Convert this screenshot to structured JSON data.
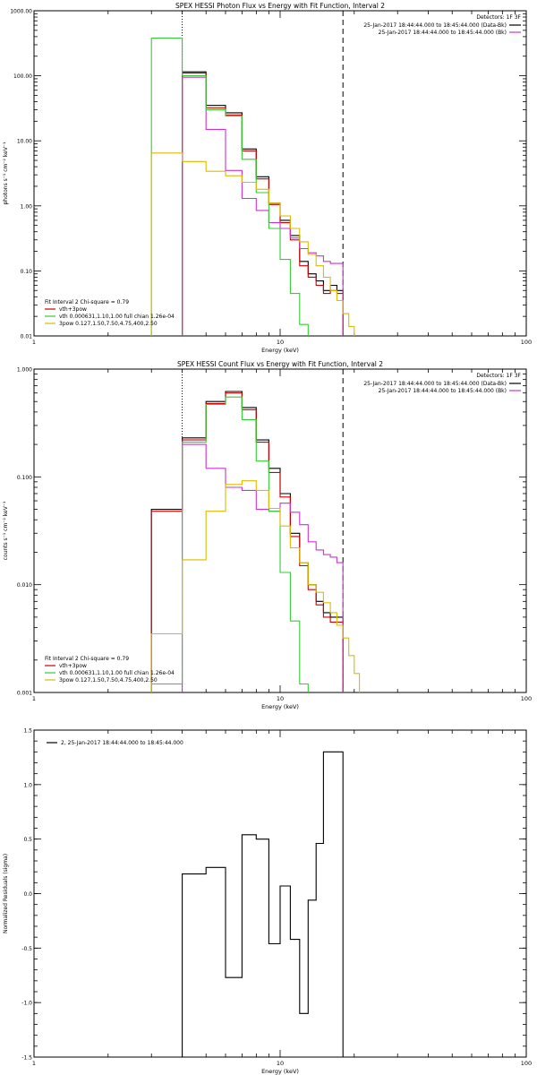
{
  "chart_data": [
    {
      "type": "line",
      "title": "SPEX HESSI Photon Flux vs Energy with Fit Function, Interval 2",
      "xlabel": "Energy (keV)",
      "ylabel": "photons s⁻¹ cm⁻² keV⁻¹",
      "xscale": "log",
      "yscale": "log",
      "xlim": [
        1,
        100
      ],
      "ylim": [
        0.01,
        1000
      ],
      "x_ticks": [
        "1",
        "10",
        "100"
      ],
      "y_ticks": [
        "0.01",
        "0.10",
        "1.00",
        "10.00",
        "100.00",
        "1000.00"
      ],
      "legend_top": {
        "header": "Detectors: 1F 3F",
        "entries": [
          {
            "label": "25-Jan-2017 18:44:44.000 to 18:45:44.000 (Data-Bk)",
            "color": "#000000"
          },
          {
            "label": "25-Jan-2017 18:44:44.000 to 18:45:44.000 (Bk)",
            "color": "#cc33cc"
          }
        ]
      },
      "legend_bottom": {
        "header": "Fit Interval 2   Chi-square = 0.79",
        "entries": [
          {
            "label": "vth+3pow",
            "color": "#cc0000"
          },
          {
            "label": "vth 0.000631,1.10,1.00  full chian 1.26e-04",
            "color": "#33cc33"
          },
          {
            "label": "3pow 0.127,1.50,7.50,4.75,400,2.50",
            "color": "#ddbb00"
          }
        ]
      },
      "vlines": [
        {
          "x": 4.0,
          "style": "dotted"
        },
        {
          "x": 18.0,
          "style": "dashed"
        }
      ],
      "series": [
        {
          "name": "Data-Bk",
          "color": "#000000",
          "edges": [
            4,
            5,
            6,
            7,
            8,
            9,
            10,
            11,
            12,
            13,
            14,
            15,
            16,
            17,
            18
          ],
          "values": [
            115,
            35,
            27,
            7.5,
            2.8,
            1.1,
            0.6,
            0.35,
            0.14,
            0.09,
            0.07,
            0.05,
            0.06,
            0.05
          ]
        },
        {
          "name": "vth+3pow",
          "color": "#cc0000",
          "edges": [
            4,
            5,
            6,
            7,
            8,
            9,
            10,
            11,
            12,
            13,
            14,
            15,
            16,
            17,
            18
          ],
          "values": [
            110,
            32,
            25,
            7,
            2.6,
            1.05,
            0.55,
            0.3,
            0.12,
            0.08,
            0.06,
            0.045,
            0.05,
            0.045
          ]
        },
        {
          "name": "Bk",
          "color": "#cc33cc",
          "edges": [
            4,
            5,
            6,
            7,
            8,
            9,
            10,
            11,
            12,
            13,
            14,
            15,
            16,
            17,
            18
          ],
          "values": [
            95,
            15,
            3.5,
            1.3,
            0.85,
            0.55,
            0.45,
            0.32,
            0.22,
            0.19,
            0.17,
            0.14,
            0.13,
            0.13
          ]
        },
        {
          "name": "vth",
          "color": "#33cc33",
          "edges": [
            3,
            4,
            5,
            6,
            7,
            8,
            9,
            10,
            11,
            12,
            13
          ],
          "values": [
            380,
            100,
            30,
            24,
            5.2,
            1.6,
            0.45,
            0.15,
            0.045,
            0.015
          ]
        },
        {
          "name": "3pow",
          "color": "#ddbb00",
          "edges": [
            3,
            4,
            5,
            6,
            7,
            8,
            9,
            10,
            11,
            12,
            13,
            14,
            15,
            16,
            17,
            18,
            19,
            20
          ],
          "values": [
            6.5,
            4.8,
            3.4,
            2.9,
            2.3,
            1.8,
            1.1,
            0.7,
            0.45,
            0.28,
            0.18,
            0.12,
            0.08,
            0.05,
            0.035,
            0.022,
            0.014
          ]
        }
      ]
    },
    {
      "type": "line",
      "title": "SPEX HESSI Count Flux vs Energy with Fit Function, Interval 2",
      "xlabel": "Energy (keV)",
      "ylabel": "counts s⁻¹ cm⁻² keV⁻¹",
      "xscale": "log",
      "yscale": "log",
      "xlim": [
        1,
        100
      ],
      "ylim": [
        0.001,
        1
      ],
      "x_ticks": [
        "1",
        "10",
        "100"
      ],
      "y_ticks": [
        "0.001",
        "0.010",
        "0.100",
        "1.000"
      ],
      "legend_top": {
        "header": "Detectors: 1F 3F",
        "entries": [
          {
            "label": "25-Jan-2017 18:44:44.000 to 18:45:44.000 (Data-Bk)",
            "color": "#000000"
          },
          {
            "label": "25-Jan-2017 18:44:44.000 to 18:45:44.000 (Bk)",
            "color": "#cc33cc"
          }
        ]
      },
      "legend_bottom": {
        "header": "Fit Interval 2   Chi-square = 0.79",
        "entries": [
          {
            "label": "vth+3pow",
            "color": "#cc0000"
          },
          {
            "label": "vth 0.000631,1.10,1.00  full chian 1.26e-04",
            "color": "#33cc33"
          },
          {
            "label": "3pow 0.127,1.50,7.50,4.75,400,2.50",
            "color": "#ddbb00"
          }
        ]
      },
      "vlines": [
        {
          "x": 4.0,
          "style": "dotted"
        },
        {
          "x": 18.0,
          "style": "dashed"
        }
      ],
      "series": [
        {
          "name": "Data-Bk",
          "color": "#000000",
          "edges": [
            3,
            4,
            5,
            6,
            7,
            8,
            9,
            10,
            11,
            12,
            13,
            14,
            15,
            16,
            17,
            18
          ],
          "values": [
            0.05,
            0.23,
            0.5,
            0.62,
            0.44,
            0.22,
            0.12,
            0.07,
            0.03,
            0.016,
            0.01,
            0.007,
            0.0055,
            0.005,
            0.005
          ]
        },
        {
          "name": "vth+3pow",
          "color": "#cc0000",
          "edges": [
            3,
            4,
            5,
            6,
            7,
            8,
            9,
            10,
            11,
            12,
            13,
            14,
            15,
            16,
            17,
            18
          ],
          "values": [
            0.048,
            0.22,
            0.48,
            0.6,
            0.42,
            0.21,
            0.11,
            0.065,
            0.028,
            0.015,
            0.009,
            0.0065,
            0.005,
            0.0045,
            0.0045
          ]
        },
        {
          "name": "Bk",
          "color": "#cc33cc",
          "edges": [
            4,
            5,
            6,
            7,
            8,
            9,
            10,
            11,
            12,
            13,
            14,
            15,
            16,
            17,
            18
          ],
          "values": [
            0.2,
            0.12,
            0.08,
            0.075,
            0.05,
            0.048,
            0.057,
            0.047,
            0.036,
            0.025,
            0.021,
            0.019,
            0.018,
            0.016
          ]
        },
        {
          "name": "vth",
          "color": "#33cc33",
          "edges": [
            3,
            4,
            5,
            6,
            7,
            8,
            9,
            10,
            11,
            12,
            13
          ],
          "values": [
            0.0012,
            0.21,
            0.47,
            0.55,
            0.34,
            0.14,
            0.048,
            0.013,
            0.0046,
            0.0012
          ]
        },
        {
          "name": "3pow",
          "color": "#ddbb00",
          "edges": [
            3,
            4,
            5,
            6,
            7,
            8,
            9,
            10,
            11,
            12,
            13,
            14,
            15,
            16,
            17,
            18,
            19,
            20,
            21
          ],
          "values": [
            0.0035,
            0.017,
            0.048,
            0.085,
            0.092,
            0.075,
            0.051,
            0.035,
            0.022,
            0.016,
            0.01,
            0.0085,
            0.0068,
            0.0055,
            0.0042,
            0.0032,
            0.0022,
            0.0015
          ]
        }
      ]
    },
    {
      "type": "line",
      "title": "",
      "xlabel": "Energy (keV)",
      "ylabel": "Normalized Residuals (sigma)",
      "xscale": "log",
      "yscale": "linear",
      "xlim": [
        1,
        100
      ],
      "ylim": [
        -1.5,
        1.5
      ],
      "x_ticks": [
        "1",
        "10",
        "100"
      ],
      "y_ticks": [
        "-1.5",
        "-1.0",
        "-0.5",
        "0.0",
        "0.5",
        "1.0",
        "1.5"
      ],
      "legend": {
        "label": "2, 25-Jan-2017 18:44:44.000 to 18:45:44.000",
        "color": "#000000"
      },
      "series": [
        {
          "name": "residuals",
          "color": "#000000",
          "edges": [
            4,
            5,
            6,
            7,
            8,
            9,
            10,
            11,
            12,
            13,
            14,
            15,
            16,
            17,
            18
          ],
          "values": [
            0.18,
            0.24,
            -0.77,
            0.54,
            0.5,
            -0.46,
            0.07,
            -0.42,
            -1.1,
            -0.06,
            0.46,
            1.3,
            1.3,
            1.3
          ]
        }
      ]
    }
  ]
}
